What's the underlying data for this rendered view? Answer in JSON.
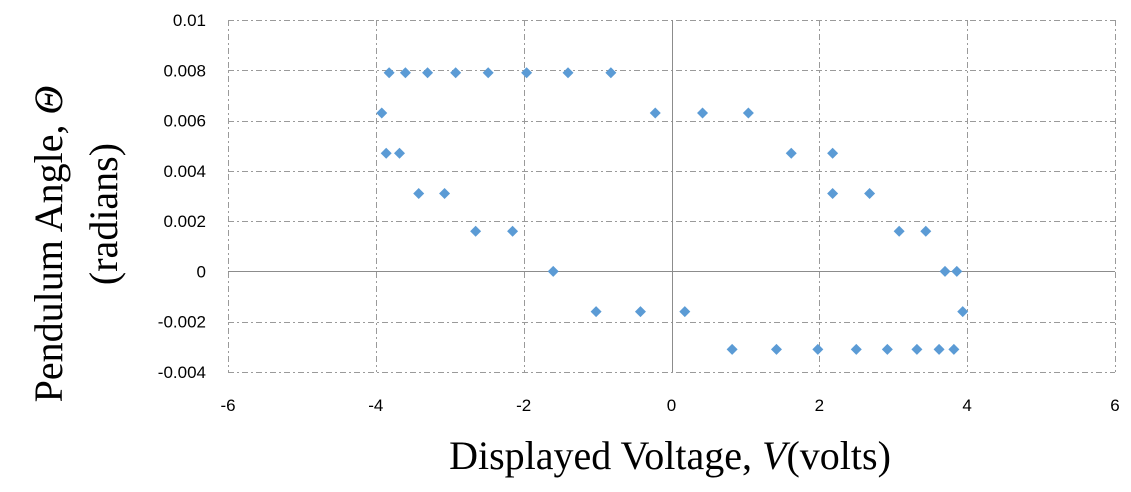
{
  "chart_data": {
    "type": "scatter",
    "xlabel": {
      "prefix": "Displayed Voltage, ",
      "symbol": "V",
      "suffix": "(volts)"
    },
    "ylabel": {
      "line1_prefix": "Pendulum Angle, ",
      "line1_symbol": "Θ",
      "line2": "(radians)"
    },
    "xlim": [
      -6,
      6
    ],
    "ylim": [
      -0.004,
      0.01
    ],
    "x_ticks": [
      -6,
      -4,
      -2,
      0,
      2,
      4,
      6
    ],
    "x_tick_labels": [
      "-6",
      "-4",
      "-2",
      "0",
      "2",
      "4",
      "6"
    ],
    "y_ticks": [
      -0.004,
      -0.002,
      0,
      0.002,
      0.004,
      0.006,
      0.008,
      0.01
    ],
    "y_tick_labels": [
      "-0.004",
      "-0.002",
      "0",
      "0.002",
      "0.004",
      "0.006",
      "0.008",
      "0.01"
    ],
    "grid": true,
    "marker_color": "#5b9bd5",
    "series": [
      {
        "points": [
          [
            -3.82,
            0.0079
          ],
          [
            -3.6,
            0.0079
          ],
          [
            -3.3,
            0.0079
          ],
          [
            -2.92,
            0.0079
          ],
          [
            -2.48,
            0.0079
          ],
          [
            -1.96,
            0.0079
          ],
          [
            -1.4,
            0.0079
          ],
          [
            -0.82,
            0.0079
          ],
          [
            -3.92,
            0.0063
          ],
          [
            -0.22,
            0.0063
          ],
          [
            0.42,
            0.0063
          ],
          [
            1.04,
            0.0063
          ],
          [
            -3.86,
            0.0047
          ],
          [
            -3.68,
            0.0047
          ],
          [
            1.62,
            0.0047
          ],
          [
            2.18,
            0.0047
          ],
          [
            -3.42,
            0.0031
          ],
          [
            -3.07,
            0.0031
          ],
          [
            2.18,
            0.0031
          ],
          [
            2.68,
            0.0031
          ],
          [
            -2.65,
            0.0016
          ],
          [
            -2.15,
            0.0016
          ],
          [
            3.08,
            0.0016
          ],
          [
            3.44,
            0.0016
          ],
          [
            -1.6,
            0.0
          ],
          [
            3.7,
            0.0
          ],
          [
            3.86,
            0.0
          ],
          [
            -1.02,
            -0.0016
          ],
          [
            -0.42,
            -0.0016
          ],
          [
            0.18,
            -0.0016
          ],
          [
            3.94,
            -0.0016
          ],
          [
            0.82,
            -0.0031
          ],
          [
            1.42,
            -0.0031
          ],
          [
            1.98,
            -0.0031
          ],
          [
            2.5,
            -0.0031
          ],
          [
            2.92,
            -0.0031
          ],
          [
            3.32,
            -0.0031
          ],
          [
            3.62,
            -0.0031
          ],
          [
            3.82,
            -0.0031
          ]
        ]
      }
    ]
  }
}
